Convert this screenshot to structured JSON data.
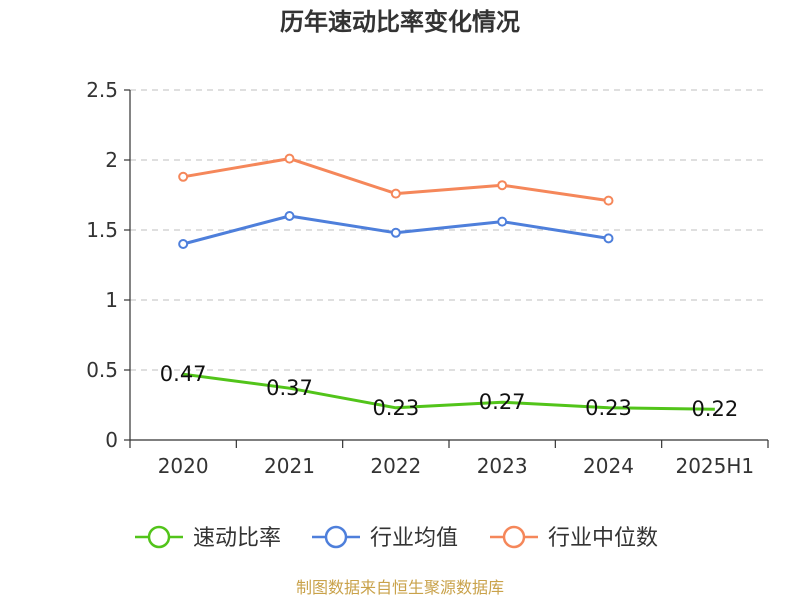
{
  "chart_data": {
    "type": "line",
    "title": "历年速动比率变化情况",
    "categories": [
      "2020",
      "2021",
      "2022",
      "2023",
      "2024",
      "2025H1"
    ],
    "ylim": [
      0,
      2.5
    ],
    "yticks": [
      0,
      0.5,
      1,
      1.5,
      2,
      2.5
    ],
    "ytick_labels": [
      "0",
      "0.5",
      "1",
      "1.5",
      "2",
      "2.5"
    ],
    "grid": true,
    "legend_position": "bottom",
    "series": [
      {
        "name": "速动比率",
        "color": "#52c41a",
        "values": [
          0.47,
          0.37,
          0.23,
          0.27,
          0.23,
          0.22
        ],
        "labels": [
          "0.47",
          "0.37",
          "0.23",
          "0.27",
          "0.23",
          "0.22"
        ],
        "show_markers": false
      },
      {
        "name": "行业均值",
        "color": "#4e7fdb",
        "values": [
          1.4,
          1.6,
          1.48,
          1.56,
          1.44,
          null
        ],
        "show_markers": true
      },
      {
        "name": "行业中位数",
        "color": "#f5875a",
        "values": [
          1.88,
          2.01,
          1.76,
          1.82,
          1.71,
          null
        ],
        "show_markers": true
      }
    ]
  },
  "source_note": "制图数据来自恒生聚源数据库"
}
